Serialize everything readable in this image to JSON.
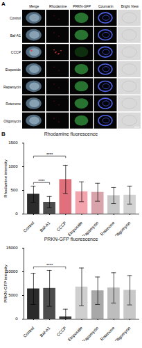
{
  "panel_a": {
    "label": "A",
    "columns": [
      "Merge",
      "Rhodamine",
      "PRKN-GFP",
      "Coumarin",
      "Bright View"
    ],
    "rows": [
      "Control",
      "Baf-A1",
      "CCCP",
      "Etoposide",
      "Rapamycin",
      "Rotenone",
      "Oligomycin"
    ]
  },
  "panel_b_label": "B",
  "chart_data": [
    {
      "type": "bar",
      "title": "Rhodamine fluorescence",
      "y_label": "Rhodamine intensity",
      "categories": [
        "Control",
        "Baf-A1",
        "CCCP",
        "Etoposide",
        "Rapamycin",
        "Rotenone",
        "Oligomycin"
      ],
      "values": [
        420,
        250,
        730,
        470,
        460,
        390,
        400
      ],
      "errors": [
        170,
        120,
        300,
        210,
        190,
        170,
        190
      ],
      "colors": [
        "#2b2b2b",
        "#4d4d4d",
        "#e0707c",
        "#f2a3ab",
        "#d9a3ab",
        "#c8c8c8",
        "#d2d2d2"
      ],
      "ylim": [
        0,
        1500
      ],
      "yticks": [
        0,
        500,
        1000,
        1500
      ],
      "annotations": [
        {
          "from": "Control",
          "to": "Baf-A1",
          "label": "****"
        },
        {
          "from": "Control",
          "to": "CCCP",
          "label": "****"
        }
      ]
    },
    {
      "type": "bar",
      "title": "PRKN-GFP fluorescence",
      "y_label": "PRKN-GFP intensity",
      "categories": [
        "Control",
        "Baf-A1",
        "CCCP",
        "Etoposide",
        "Rapamycin",
        "Rotenone",
        "Oligomycin"
      ],
      "values": [
        6400,
        6500,
        500,
        6800,
        6000,
        6600,
        6100
      ],
      "errors": [
        3300,
        3800,
        1600,
        4000,
        2900,
        3200,
        3100
      ],
      "colors": [
        "#2b2b2b",
        "#4d4d4d",
        "#3a3a3a",
        "#cfcfcf",
        "#a8a8a8",
        "#bdbdbd",
        "#c8c8c8"
      ],
      "ylim": [
        0,
        15000
      ],
      "yticks": [
        0,
        5000,
        10000,
        15000
      ],
      "annotations": [
        {
          "from": "Control",
          "to": "CCCP",
          "label": "****"
        }
      ]
    }
  ]
}
